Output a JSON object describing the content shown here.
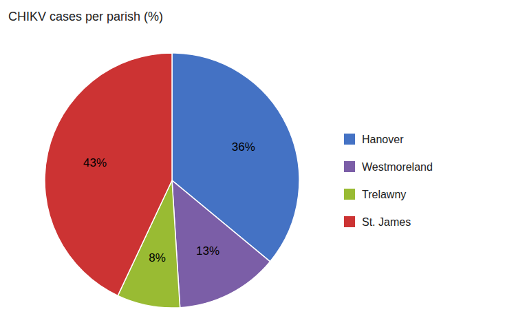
{
  "chart_data": {
    "type": "pie",
    "title": "CHIKV cases per parish (%)",
    "categories": [
      "Hanover",
      "Westmoreland",
      "Trelawny",
      "St. James"
    ],
    "values": [
      36,
      13,
      8,
      43
    ],
    "value_labels": [
      "36%",
      "13%",
      "8%",
      "43%"
    ],
    "colors": [
      "#4472C4",
      "#7B5EA7",
      "#99BB33",
      "#CC3333"
    ],
    "data_labels": true
  }
}
